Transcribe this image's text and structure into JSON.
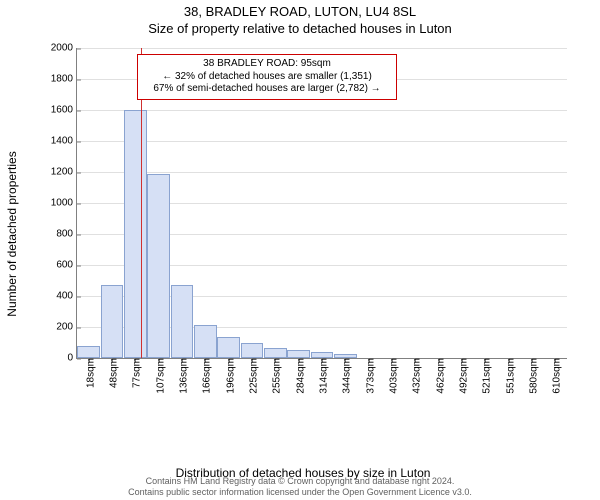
{
  "title_line1": "38, BRADLEY ROAD, LUTON, LU4 8SL",
  "title_line2": "Size of property relative to detached houses in Luton",
  "chart": {
    "type": "histogram",
    "ylabel": "Number of detached properties",
    "xlabel": "Distribution of detached houses by size in Luton",
    "ylim": [
      0,
      2000
    ],
    "ytick_step": 200,
    "x_categories": [
      "18sqm",
      "48sqm",
      "77sqm",
      "107sqm",
      "136sqm",
      "166sqm",
      "196sqm",
      "225sqm",
      "255sqm",
      "284sqm",
      "314sqm",
      "344sqm",
      "373sqm",
      "403sqm",
      "432sqm",
      "462sqm",
      "492sqm",
      "521sqm",
      "551sqm",
      "580sqm",
      "610sqm"
    ],
    "bar_values": [
      80,
      470,
      1600,
      1185,
      470,
      210,
      135,
      100,
      65,
      50,
      40,
      25,
      0,
      0,
      0,
      0,
      0,
      0,
      0,
      0,
      0
    ],
    "bar_fill": "#d6e0f5",
    "bar_border": "#8aa3d0",
    "grid_color": "#e0e0e0",
    "axis_color": "#808080",
    "background_color": "#ffffff",
    "marker_x_value": 95,
    "marker_color": "#d03030",
    "x_range": [
      18,
      610
    ]
  },
  "annotation": {
    "line1": "38 BRADLEY ROAD: 95sqm",
    "line2": "← 32% of detached houses are smaller (1,351)",
    "line3": "67% of semi-detached houses are larger (2,782) →",
    "border_color": "#cc0000",
    "background_color": "#ffffff",
    "font_size": 10
  },
  "footer": {
    "line1": "Contains HM Land Registry data © Crown copyright and database right 2024.",
    "line2": "Contains public sector information licensed under the Open Government Licence v3.0."
  }
}
